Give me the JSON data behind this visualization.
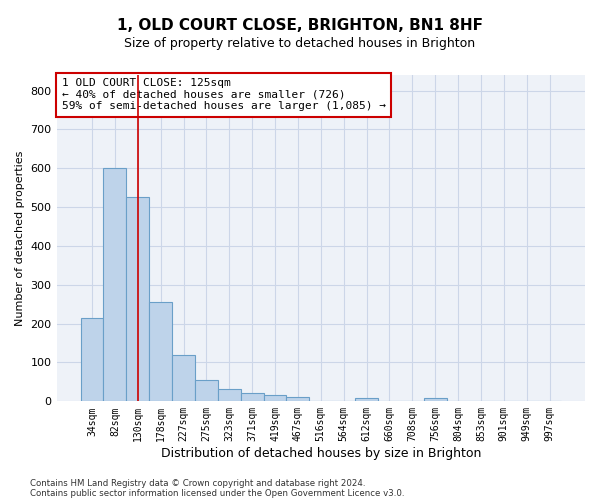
{
  "title1": "1, OLD COURT CLOSE, BRIGHTON, BN1 8HF",
  "title2": "Size of property relative to detached houses in Brighton",
  "xlabel": "Distribution of detached houses by size in Brighton",
  "ylabel": "Number of detached properties",
  "footer1": "Contains HM Land Registry data © Crown copyright and database right 2024.",
  "footer2": "Contains public sector information licensed under the Open Government Licence v3.0.",
  "bin_labels": [
    "34sqm",
    "82sqm",
    "130sqm",
    "178sqm",
    "227sqm",
    "275sqm",
    "323sqm",
    "371sqm",
    "419sqm",
    "467sqm",
    "516sqm",
    "564sqm",
    "612sqm",
    "660sqm",
    "708sqm",
    "756sqm",
    "804sqm",
    "853sqm",
    "901sqm",
    "949sqm",
    "997sqm"
  ],
  "bar_values": [
    215,
    600,
    525,
    255,
    118,
    55,
    32,
    22,
    17,
    10,
    0,
    0,
    8,
    0,
    0,
    8,
    0,
    0,
    0,
    0,
    0
  ],
  "bar_color": "#bed3ea",
  "bar_edge_color": "#6a9fc8",
  "vline_x": 2,
  "vline_color": "#cc0000",
  "annotation_text": "1 OLD COURT CLOSE: 125sqm\n← 40% of detached houses are smaller (726)\n59% of semi-detached houses are larger (1,085) →",
  "annotation_box_color": "#ffffff",
  "annotation_box_edge": "#cc0000",
  "ylim": [
    0,
    840
  ],
  "yticks": [
    0,
    100,
    200,
    300,
    400,
    500,
    600,
    700,
    800
  ],
  "grid_color": "#ccd6e8",
  "bg_color": "#eef2f8",
  "title1_fontsize": 11,
  "title2_fontsize": 9,
  "xlabel_fontsize": 9,
  "ylabel_fontsize": 8
}
